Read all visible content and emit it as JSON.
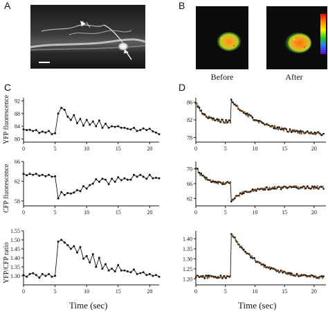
{
  "panels": {
    "a": "A",
    "b": "B",
    "c": "C",
    "d": "D"
  },
  "captions": {
    "before": "Before",
    "after": "After"
  },
  "colors": {
    "trace": "#111111",
    "marker_d": "#8a5a2b",
    "micrograph_bg": "#1a1a1a"
  },
  "chart_data": [
    {
      "type": "line",
      "panel": "C",
      "ylabel": "YFP fluorescence",
      "xlabel": "",
      "xlim": [
        0,
        21.5
      ],
      "ylim": [
        79,
        93
      ],
      "xticks": [
        0,
        5,
        10,
        15,
        20
      ],
      "yticks": [
        80,
        84,
        88,
        92
      ],
      "series": [
        {
          "x": [
            0,
            0.5,
            1,
            1.5,
            2,
            2.5,
            3,
            3.5,
            4,
            4.5,
            5,
            5.5,
            6,
            6.5,
            7,
            7.5,
            8,
            8.5,
            9,
            9.5,
            10,
            10.5,
            11,
            11.5,
            12,
            12.5,
            13,
            13.5,
            14,
            14.5,
            15,
            15.5,
            16,
            16.5,
            17,
            17.5,
            18,
            18.5,
            19,
            19.5,
            20,
            20.5,
            21,
            21.5
          ],
          "y": [
            83,
            82.8,
            82.9,
            82.5,
            82.8,
            81.9,
            82.3,
            82,
            82.5,
            81.5,
            81.8,
            88,
            89.8,
            89.2,
            87,
            86,
            87.5,
            85,
            86.3,
            84.2,
            86,
            84.5,
            85.5,
            84,
            85.8,
            83.5,
            84.8,
            83.5,
            84,
            83.8,
            84,
            83.5,
            83.5,
            83.2,
            83,
            83.5,
            82.5,
            82.8,
            83.3,
            82.8,
            83.2,
            82.4,
            82,
            81.5
          ]
        }
      ]
    },
    {
      "type": "line",
      "panel": "C",
      "ylabel": "CFP fluorescence",
      "xlabel": "",
      "xlim": [
        0,
        21.5
      ],
      "ylim": [
        57,
        66
      ],
      "xticks": [
        0,
        5,
        10,
        15,
        20
      ],
      "yticks": [
        58,
        62,
        66
      ],
      "series": [
        {
          "x": [
            0,
            0.5,
            1,
            1.5,
            2,
            2.5,
            3,
            3.5,
            4,
            4.5,
            5,
            5.5,
            6,
            6.5,
            7,
            7.5,
            8,
            8.5,
            9,
            9.5,
            10,
            10.5,
            11,
            11.5,
            12,
            12.5,
            13,
            13.5,
            14,
            14.5,
            15,
            15.5,
            16,
            16.5,
            17,
            17.5,
            18,
            18.5,
            19,
            19.5,
            20,
            20.5,
            21,
            21.5
          ],
          "y": [
            63.5,
            63.2,
            63.5,
            63.3,
            63.5,
            63.1,
            63.3,
            63,
            63.3,
            62.9,
            63,
            58.5,
            59.8,
            59.2,
            59.6,
            59.5,
            59.7,
            60.2,
            60,
            61,
            60.5,
            61.2,
            61.5,
            62.4,
            61.9,
            62.5,
            62.3,
            61.4,
            62.5,
            61.9,
            62.8,
            62.2,
            62.6,
            62.3,
            62.3,
            63.3,
            62.9,
            63.3,
            62.9,
            62.5,
            63.3,
            62.6,
            62.7,
            62.6
          ]
        }
      ]
    },
    {
      "type": "line",
      "panel": "C",
      "ylabel": "YFP/CFP ratio",
      "xlabel": "Time (sec)",
      "xlim": [
        0,
        21.5
      ],
      "ylim": [
        1.25,
        1.55
      ],
      "xticks": [
        0,
        5,
        10,
        15,
        20
      ],
      "yticks": [
        1.3,
        1.35,
        1.4,
        1.45,
        1.5,
        1.55
      ],
      "series": [
        {
          "x": [
            0,
            0.5,
            1,
            1.5,
            2,
            2.5,
            3,
            3.5,
            4,
            4.5,
            5,
            5.5,
            6,
            6.5,
            7,
            7.5,
            8,
            8.5,
            9,
            9.5,
            10,
            10.5,
            11,
            11.5,
            12,
            12.5,
            13,
            13.5,
            14,
            14.5,
            15,
            15.5,
            16,
            16.5,
            17,
            17.5,
            18,
            18.5,
            19,
            19.5,
            20,
            20.5,
            21,
            21.5
          ],
          "y": [
            1.305,
            1.295,
            1.31,
            1.315,
            1.305,
            1.29,
            1.31,
            1.3,
            1.31,
            1.295,
            1.3,
            1.49,
            1.5,
            1.485,
            1.47,
            1.45,
            1.465,
            1.43,
            1.46,
            1.395,
            1.41,
            1.375,
            1.42,
            1.35,
            1.4,
            1.34,
            1.365,
            1.33,
            1.34,
            1.325,
            1.36,
            1.33,
            1.33,
            1.325,
            1.32,
            1.335,
            1.31,
            1.315,
            1.32,
            1.305,
            1.31,
            1.3,
            1.305,
            1.295
          ]
        }
      ]
    },
    {
      "type": "line",
      "panel": "D",
      "ylabel": "",
      "xlabel": "",
      "xlim": [
        0,
        22
      ],
      "ylim": [
        77,
        87
      ],
      "xticks": [
        0,
        5,
        10,
        15,
        20
      ],
      "yticks": [
        78,
        82,
        86
      ],
      "model": {
        "baseline": 81.5,
        "pre_decay_from": 86,
        "pre_tau": 1.5,
        "onset": 6,
        "peak": 86.5,
        "post_floor": 78.5,
        "post_tau": 5
      },
      "series": [
        {
          "name": "",
          "x": [],
          "y": []
        }
      ]
    },
    {
      "type": "line",
      "panel": "D",
      "ylabel": "",
      "xlabel": "",
      "xlim": [
        0,
        22
      ],
      "ylim": [
        60,
        72
      ],
      "xticks": [
        0,
        5,
        10,
        15,
        20
      ],
      "yticks": [
        62,
        66,
        70
      ],
      "model": {
        "baseline": 66,
        "pre_decay_from": 70.5,
        "pre_tau": 1.5,
        "onset": 6,
        "trough": 61.5,
        "post_level": 65,
        "post_tau": 2.5
      },
      "series": [
        {
          "name": "",
          "x": [],
          "y": []
        }
      ]
    },
    {
      "type": "line",
      "panel": "D",
      "ylabel": "",
      "xlabel": "Time (sec)",
      "xlim": [
        0,
        22
      ],
      "ylim": [
        1.17,
        1.44
      ],
      "xticks": [
        0,
        5,
        10,
        15,
        20
      ],
      "yticks": [
        1.2,
        1.25,
        1.3,
        1.35,
        1.4
      ],
      "model": {
        "baseline": 1.21,
        "onset": 6,
        "peak": 1.43,
        "post_floor": 1.2,
        "post_tau": 4.5
      },
      "series": [
        {
          "name": "",
          "x": [],
          "y": []
        }
      ]
    }
  ]
}
